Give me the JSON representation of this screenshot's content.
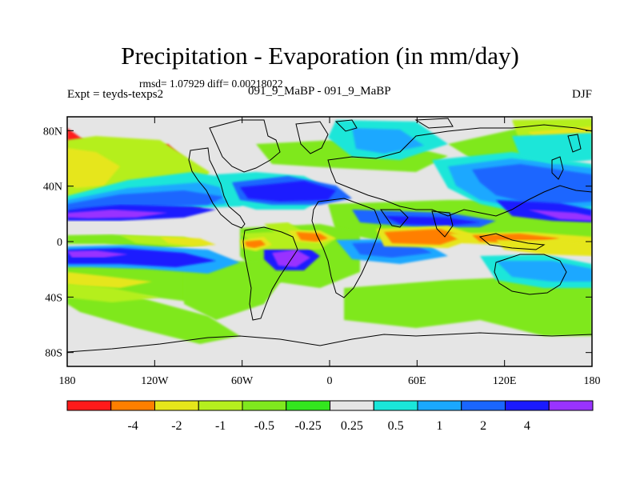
{
  "title": "Precipitation - Evaporation (in mm/day)",
  "stats": "rmsd= 1.07929  diff= 0.00218022",
  "experiment": "Expt = teyds-texps2",
  "runs": "091_9_MaBP - 091_9_MaBP",
  "season": "DJF",
  "map": {
    "projection": "cylindrical-equidistant",
    "lon_range": [
      -180,
      180
    ],
    "lat_range": [
      -90,
      90
    ],
    "lon_ticks": [
      {
        "value": -180,
        "label": "180"
      },
      {
        "value": -120,
        "label": "120W"
      },
      {
        "value": -60,
        "label": "60W"
      },
      {
        "value": 0,
        "label": "0"
      },
      {
        "value": 60,
        "label": "60E"
      },
      {
        "value": 120,
        "label": "120E"
      },
      {
        "value": 180,
        "label": "180"
      }
    ],
    "lat_ticks": [
      {
        "value": 80,
        "label": "80N"
      },
      {
        "value": 40,
        "label": "40N"
      },
      {
        "value": 0,
        "label": "0"
      },
      {
        "value": -40,
        "label": "40S"
      },
      {
        "value": -80,
        "label": "80S"
      }
    ],
    "background_color": "#e5e5e5",
    "coastline_color": "#000000"
  },
  "colorbar": {
    "colors": [
      "#ff1a1a",
      "#ff7f00",
      "#e6e61a",
      "#b5ef1e",
      "#7fe81e",
      "#33e61e",
      "#e5e5e5",
      "#1ae6d9",
      "#1aa8ff",
      "#1a66ff",
      "#1a1aff",
      "#9933ff"
    ],
    "labels": [
      "-4",
      "-2",
      "-1",
      "-0.5",
      "-0.25",
      "0.25",
      "0.5",
      "1",
      "2",
      "4"
    ]
  }
}
